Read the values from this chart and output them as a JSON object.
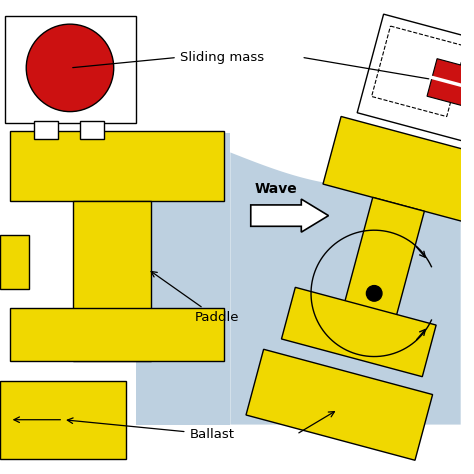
{
  "bg_color": "#ffffff",
  "water_color": "#bdd0e0",
  "yellow": "#f0d800",
  "yellow_edge": "#000000",
  "red": "#cc1111",
  "figsize": [
    4.74,
    4.74
  ],
  "dpi": 100,
  "labels": {
    "sliding_mass": "Sliding mass",
    "paddle": "Paddle",
    "ballast": "Ballast",
    "wave": "Wave"
  }
}
